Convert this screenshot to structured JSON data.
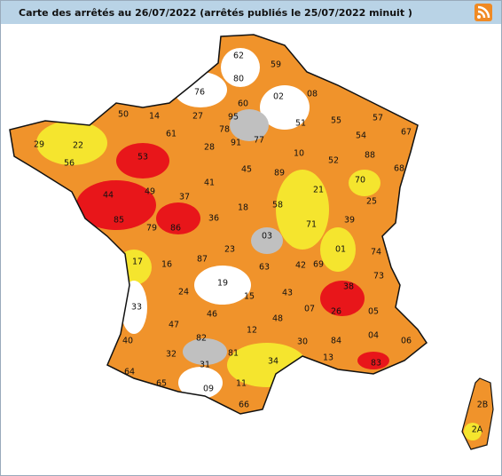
{
  "header": {
    "title": "Carte des arrêtés au 26/07/2022 (arrêtés publiés le 25/07/2022 minuit )"
  },
  "map": {
    "departments": [
      "62",
      "59",
      "80",
      "76",
      "02",
      "08",
      "50",
      "14",
      "27",
      "60",
      "95",
      "51",
      "55",
      "57",
      "67",
      "61",
      "78",
      "91",
      "77",
      "54",
      "29",
      "22",
      "53",
      "28",
      "10",
      "52",
      "88",
      "68",
      "56",
      "45",
      "89",
      "70",
      "41",
      "21",
      "25",
      "44",
      "49",
      "37",
      "58",
      "18",
      "39",
      "85",
      "79",
      "86",
      "36",
      "71",
      "03",
      "01",
      "74",
      "17",
      "16",
      "87",
      "23",
      "63",
      "42",
      "69",
      "73",
      "19",
      "24",
      "15",
      "43",
      "38",
      "33",
      "26",
      "07",
      "05",
      "46",
      "48",
      "47",
      "12",
      "82",
      "04",
      "06",
      "40",
      "30",
      "84",
      "81",
      "32",
      "13",
      "83",
      "34",
      "31",
      "64",
      "65",
      "11",
      "09",
      "66",
      "2B",
      "2A"
    ]
  }
}
